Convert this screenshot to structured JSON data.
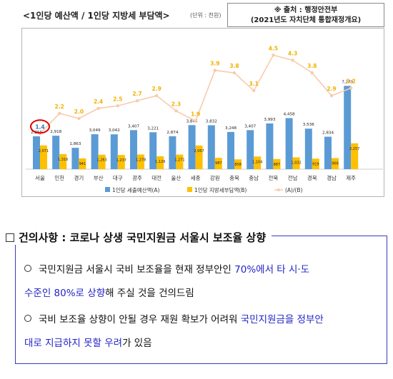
{
  "header": {
    "title": "<1인당 예산액 / 1인당 지방세 부담액>",
    "unit": "(단위 : 천원)",
    "source_line1": "※ 출처 : 행정안전부",
    "source_line2": "(2021년도 자치단체 통합재정개요)"
  },
  "colors": {
    "bar_budget": "#5b9bd5",
    "bar_tax": "#ffc000",
    "line_ratio": "#f8cbad",
    "ratio_label": "#f5b000",
    "highlight_circle": "#e00000",
    "highlight_text": "#2e75b6",
    "recommendation_accent": "#2323c8"
  },
  "chart_data": {
    "type": "bar",
    "categories": [
      "서울",
      "인천",
      "경기",
      "부산",
      "대구",
      "광주",
      "대전",
      "울산",
      "세종",
      "강원",
      "충북",
      "충남",
      "전북",
      "전남",
      "경북",
      "경남",
      "제주"
    ],
    "series": [
      {
        "name": "1인당 세출예산액(A)",
        "type": "bar",
        "values": [
          2868,
          2918,
          1863,
          3049,
          3042,
          3407,
          3221,
          2874,
          3845,
          3832,
          3248,
          3407,
          3993,
          4458,
          3536,
          2834,
          7270
        ]
      },
      {
        "name": "1인당 지방세부담액(B)",
        "type": "bar",
        "values": [
          2071,
          1316,
          941,
          1263,
          1237,
          1278,
          1129,
          1271,
          2067,
          987,
          858,
          1104,
          887,
          1032,
          919,
          966,
          2257
        ]
      },
      {
        "name": "(A)/(B)",
        "type": "line",
        "values": [
          1.4,
          2.2,
          2.0,
          2.4,
          2.5,
          2.7,
          2.9,
          2.3,
          1.9,
          3.9,
          3.8,
          3.1,
          4.5,
          4.3,
          3.8,
          2.9,
          3.2
        ]
      }
    ],
    "value_labels_budget": [
      "2,868",
      "2,918",
      "1,863",
      "3,049",
      "3,042",
      "3,407",
      "3,221",
      "2,874",
      "3,845",
      "3,832",
      "3,248",
      "3,407",
      "3,993",
      "4,458",
      "3,536",
      "2,834",
      "7,270"
    ],
    "value_labels_tax": [
      "2,071",
      "1,316",
      "941",
      "1,263",
      "1,237",
      "1,278",
      "1,129",
      "1,271",
      "2,067",
      "987",
      "858",
      "1,104",
      "887",
      "1,032",
      "919",
      "966",
      "2,257"
    ],
    "value_labels_ratio": [
      "1.4",
      "2.2",
      "2.0",
      "2.4",
      "2.5",
      "2.7",
      "2.9",
      "2.3",
      "1.9",
      "3.9",
      "3.8",
      "3.1",
      "4.5",
      "4.3",
      "3.8",
      "2.9",
      "3.2"
    ],
    "highlighted_category": "서울",
    "legend_position": "bottom",
    "grid": false
  },
  "recommendation": {
    "title": "건의사항 : 코로나 상생 국민지원금 서울시 보조율 상향",
    "bullet1": {
      "line1_plain": "국민지원금 서울시 국비 보조율을 현재 정부안인 ",
      "line1_highlight": "70%에서 타 시·도",
      "line2_highlight": "수준인 80%로 상향",
      "line2_plain": "해 주실 것을 건의드림"
    },
    "bullet2": {
      "line1_plain": "국비 보조율 상향이 안될 경우 재원 확보가 어려워 ",
      "line1_highlight": "국민지원금을 정부안",
      "line2_highlight": "대로 지급하지 못할 우려",
      "line2_plain": "가 있음"
    }
  }
}
